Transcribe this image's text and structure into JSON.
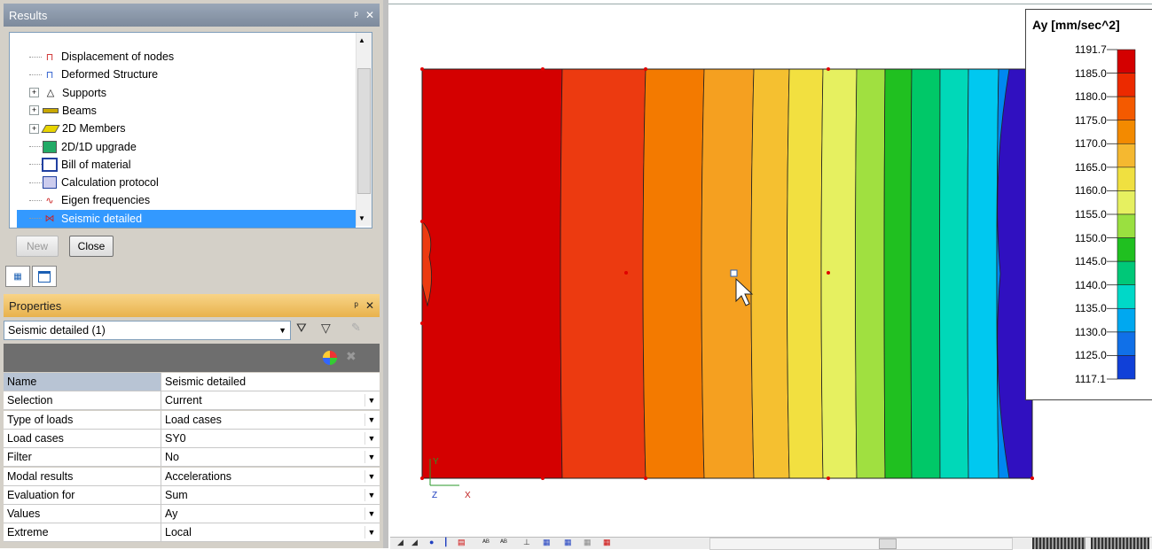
{
  "results_panel": {
    "title": "Results",
    "pin": "ᵖ",
    "close": "✕",
    "items": [
      {
        "label": "Displacement of nodes",
        "icon": "displacement-icon",
        "expandable": false
      },
      {
        "label": "Deformed Structure",
        "icon": "deformed-structure-icon",
        "expandable": false
      },
      {
        "label": "Supports",
        "icon": "support-icon",
        "expandable": true
      },
      {
        "label": "Beams",
        "icon": "beam-icon",
        "expandable": true
      },
      {
        "label": "2D Members",
        "icon": "plate-icon",
        "expandable": true
      },
      {
        "label": "2D/1D upgrade",
        "icon": "upgrade-icon",
        "expandable": false
      },
      {
        "label": "Bill of material",
        "icon": "bill-icon",
        "expandable": false
      },
      {
        "label": "Calculation protocol",
        "icon": "protocol-icon",
        "expandable": false
      },
      {
        "label": "Eigen frequencies",
        "icon": "eigen-icon",
        "expandable": false
      },
      {
        "label": "Seismic detailed",
        "icon": "seismic-icon",
        "expandable": false,
        "selected": true
      }
    ],
    "new_label": "New",
    "close_label": "Close"
  },
  "properties_panel": {
    "title": "Properties",
    "selector_value": "Seismic detailed (1)",
    "rows": [
      {
        "name": "Name",
        "value": "Seismic detailed",
        "dropdown": false
      },
      {
        "name": "Selection",
        "value": "Current",
        "dropdown": true
      },
      {
        "name": "Type of loads",
        "value": "Load cases",
        "dropdown": true
      },
      {
        "name": "Load cases",
        "value": "SY0",
        "dropdown": true
      },
      {
        "name": "Filter",
        "value": "No",
        "dropdown": true
      },
      {
        "name": "Modal results",
        "value": "Accelerations",
        "dropdown": true
      },
      {
        "name": "Evaluation for",
        "value": "Sum",
        "dropdown": true
      },
      {
        "name": "Values",
        "value": "Ay",
        "dropdown": true
      },
      {
        "name": "Extreme",
        "value": "Local",
        "dropdown": true
      }
    ]
  },
  "legend": {
    "title": "Ay [mm/sec^2]",
    "labels": [
      "1191.7",
      "1185.0",
      "1180.0",
      "1175.0",
      "1170.0",
      "1165.0",
      "1160.0",
      "1155.0",
      "1150.0",
      "1145.0",
      "1140.0",
      "1135.0",
      "1130.0",
      "1125.0",
      "1117.1"
    ],
    "colors": [
      "#d40000",
      "#ec2a00",
      "#f45a00",
      "#f38a00",
      "#f5b830",
      "#f0e040",
      "#e6f060",
      "#9ae040",
      "#20c020",
      "#00c878",
      "#00d8c8",
      "#00a8f0",
      "#1070e8",
      "#1040d8"
    ]
  },
  "contour": {
    "colors": [
      "#d40000",
      "#ec3a10",
      "#f37a00",
      "#f5a020",
      "#f5c030",
      "#f2e040",
      "#e6f060",
      "#a0e040",
      "#20c020",
      "#00c868",
      "#00d8b8",
      "#00c8f0",
      "#0088f0",
      "#1058e0",
      "#3010c0"
    ]
  },
  "axes": {
    "x": "X",
    "y": "Y",
    "z": "Z"
  }
}
